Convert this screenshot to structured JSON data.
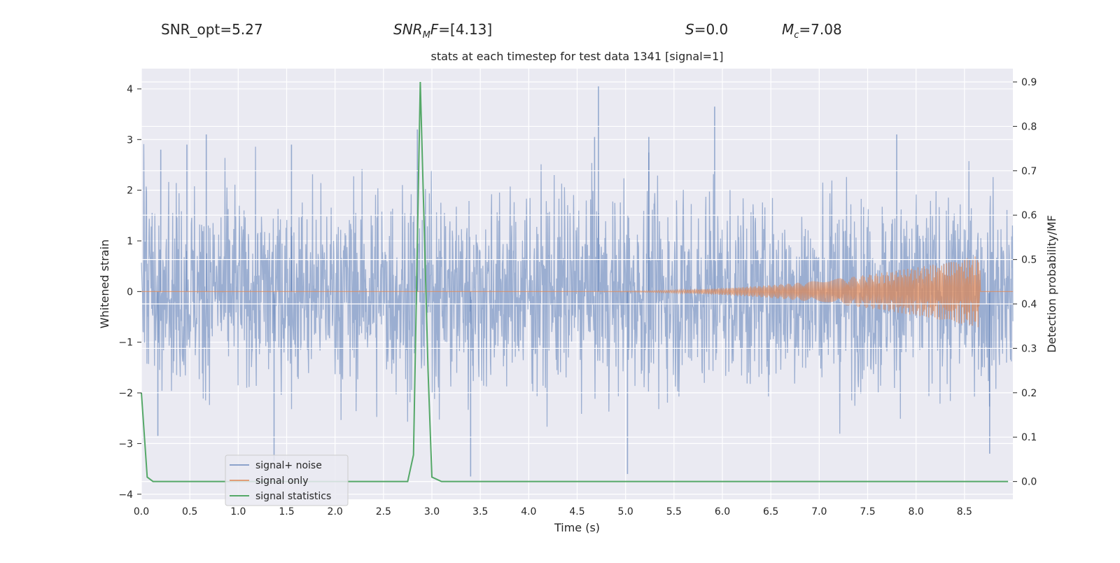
{
  "header": {
    "snr_opt": "SNR_opt=5.27",
    "snr_mf_sym": "SNR",
    "snr_mf_sub": "M",
    "snr_mf_tail": "F",
    "snr_mf_value": "=[4.13]",
    "s_sym": "S",
    "s_value": "=0.0",
    "mc_sym": "M",
    "mc_sub": "c",
    "mc_value": "=7.08"
  },
  "colors": {
    "background": "#eaeaf2",
    "grid": "#ffffff",
    "signal_noise": "#4c72b0",
    "signal_only": "#dd8452",
    "signal_statistics": "#55a868"
  },
  "chart_data": {
    "type": "line",
    "title": "stats at each timestep for test data 1341 [signal=1]",
    "xlabel": "Time (s)",
    "ylabel": "Whitened strain",
    "y2label": "Detection probability/MF",
    "xlim": [
      0,
      9
    ],
    "ylim": [
      -4.1,
      4.4
    ],
    "y2lim": [
      -0.04,
      0.93
    ],
    "xticks": [
      "0.0",
      "0.5",
      "1.0",
      "1.5",
      "2.0",
      "2.5",
      "3.0",
      "3.5",
      "4.0",
      "4.5",
      "5.0",
      "5.5",
      "6.0",
      "6.5",
      "7.0",
      "7.5",
      "8.0",
      "8.5"
    ],
    "yticks": [
      "4",
      "3",
      "2",
      "1",
      "0",
      "−1",
      "−2",
      "−3",
      "−4"
    ],
    "y2ticks": [
      "0.9",
      "0.8",
      "0.7",
      "0.6",
      "0.5",
      "0.4",
      "0.3",
      "0.2",
      "0.1",
      "0.0"
    ],
    "grid": true,
    "legend_position": "lower-left",
    "series": [
      {
        "name": "signal+ noise",
        "axis": "left",
        "style": "dense noise, amplitude about ±2 with spikes near ±3",
        "peaks": [
          {
            "x": 0.67,
            "y": 3.1
          },
          {
            "x": 0.47,
            "y": 2.9
          },
          {
            "x": 0.2,
            "y": 2.8
          },
          {
            "x": 1.55,
            "y": 2.9
          },
          {
            "x": 2.85,
            "y": 3.2
          },
          {
            "x": 4.72,
            "y": 4.05
          },
          {
            "x": 4.68,
            "y": 3.05
          },
          {
            "x": 5.24,
            "y": 3.05
          },
          {
            "x": 5.92,
            "y": 3.65
          },
          {
            "x": 7.8,
            "y": 3.1
          },
          {
            "x": 1.37,
            "y": -3.35
          },
          {
            "x": 3.4,
            "y": -3.65
          },
          {
            "x": 5.02,
            "y": -3.6
          },
          {
            "x": 8.76,
            "y": -3.2
          },
          {
            "x": 0.17,
            "y": -2.85
          }
        ]
      },
      {
        "name": "signal only",
        "axis": "left",
        "style": "chirp, starts growing around 4.5 s and peaks at about 8.66 s",
        "chirp_start": 4.5,
        "merger_time": 8.66,
        "peak_amplitude": 0.68
      },
      {
        "name": "signal statistics",
        "axis": "right",
        "x": [
          0,
          0.06,
          0.12,
          2.75,
          2.81,
          2.88,
          2.96,
          3.0,
          3.1,
          8.95
        ],
        "y": [
          0.2,
          0.01,
          0.0,
          0.0,
          0.06,
          0.9,
          0.25,
          0.01,
          0.0,
          0.0
        ]
      }
    ]
  }
}
